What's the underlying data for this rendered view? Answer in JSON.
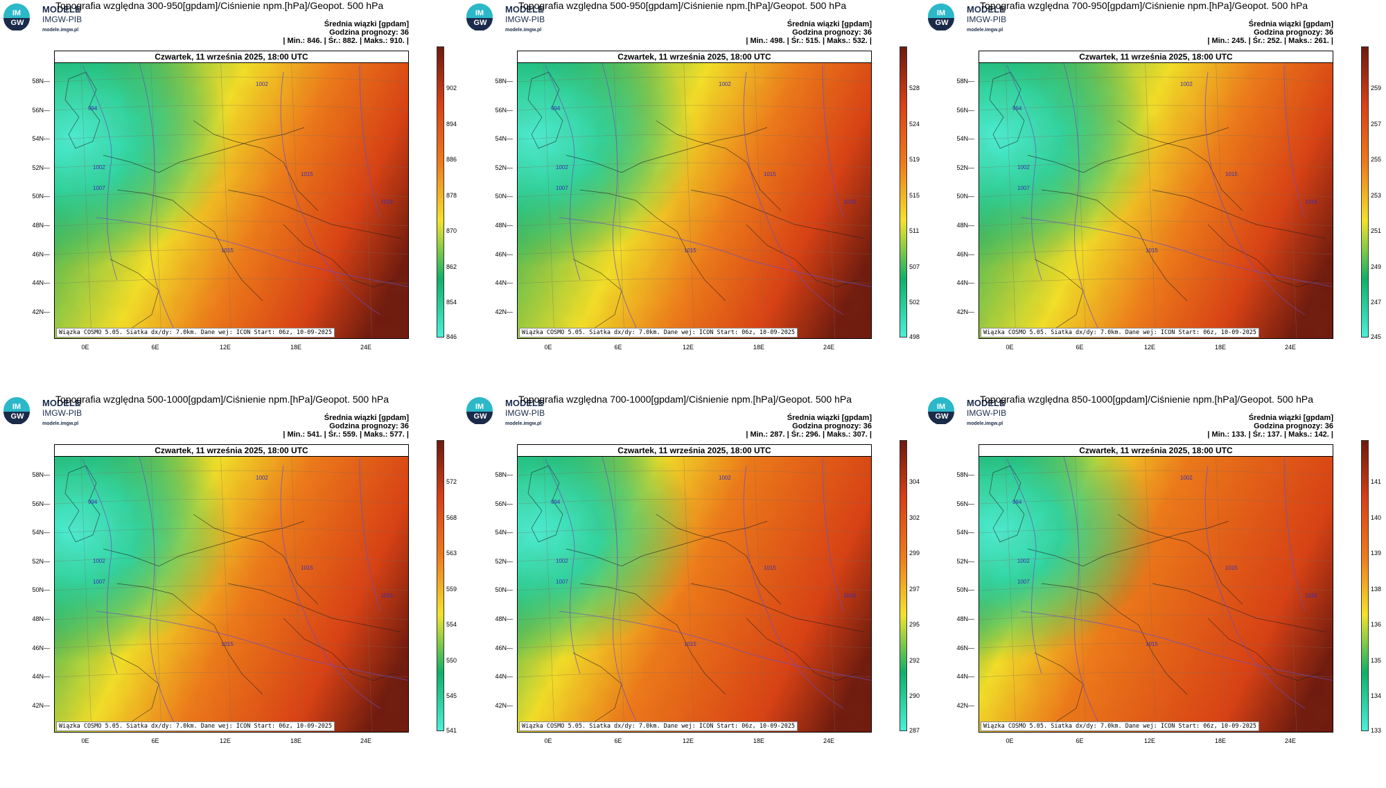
{
  "common": {
    "logo_line1": "MODELE",
    "logo_line2": "IMGW-PIB",
    "logo_line3": "modele.imgw.pl",
    "logo_badge_top": "IM",
    "logo_badge_bottom": "GW",
    "subtitle": "Średnia wiązki [gpdam]",
    "forecast_hour": "Godzina prognozy: 36",
    "date": "Czwartek, 11 września 2025, 18:00 UTC",
    "footer": "Wiązka COSMO 5.05. Siatka dx/dy: 7.0km. Dane wej: ICON Start: 06z, 10-09-2025",
    "lat_labels": [
      "58N",
      "56N",
      "54N",
      "52N",
      "50N",
      "48N",
      "46N",
      "44N",
      "42N"
    ],
    "lon_labels": [
      "0E",
      "6E",
      "12E",
      "18E",
      "24E"
    ],
    "colors": {
      "low": "#49f0d8",
      "green": "#10b06a",
      "yellow": "#f3e22a",
      "orange": "#ee7b1c",
      "red": "#d94116",
      "dark": "#6e1a10"
    }
  },
  "panels": [
    {
      "title": "Topografia względna 300-950[gpdam]/Ciśnienie npm.[hPa]/Geopot. 500 hPa",
      "stats": "| Min.:  846. | Śr.:  882. | Maks.:  910. |",
      "colorbar_ticks": [
        "902",
        "894",
        "886",
        "878",
        "870",
        "862",
        "854",
        "846"
      ]
    },
    {
      "title": "Topografia względna 500-950[gpdam]/Ciśnienie npm.[hPa]/Geopot. 500 hPa",
      "stats": "| Min.:  498. | Śr.:  515. | Maks.:  532. |",
      "colorbar_ticks": [
        "528",
        "524",
        "519",
        "515",
        "511",
        "507",
        "502",
        "498"
      ]
    },
    {
      "title": "Topografia względna 700-950[gpdam]/Ciśnienie npm.[hPa]/Geopot. 500 hPa",
      "stats": "| Min.:  245. | Śr.:  252. | Maks.:  261. |",
      "colorbar_ticks": [
        "259",
        "257",
        "255",
        "253",
        "251",
        "249",
        "247",
        "245"
      ]
    },
    {
      "title": "Topografia względna 500-1000[gpdam]/Ciśnienie npm.[hPa]/Geopot. 500 hPa",
      "stats": "| Min.:  541. | Śr.:  559. | Maks.:  577. |",
      "colorbar_ticks": [
        "572",
        "568",
        "563",
        "559",
        "554",
        "550",
        "545",
        "541"
      ]
    },
    {
      "title": "Topografia względna 700-1000[gpdam]/Ciśnienie npm.[hPa]/Geopot. 500 hPa",
      "stats": "| Min.:  287. | Śr.:  296. | Maks.:  307. |",
      "colorbar_ticks": [
        "304",
        "302",
        "299",
        "297",
        "295",
        "292",
        "290",
        "287"
      ]
    },
    {
      "title": "Topografia względna 850-1000[gpdam]/Ciśnienie npm.[hPa]/Geopot. 500 hPa",
      "stats": "| Min.:  133. | Śr.:  137. | Maks.:  142. |",
      "colorbar_ticks": [
        "141",
        "140",
        "139",
        "138",
        "136",
        "135",
        "134",
        "133"
      ]
    }
  ]
}
